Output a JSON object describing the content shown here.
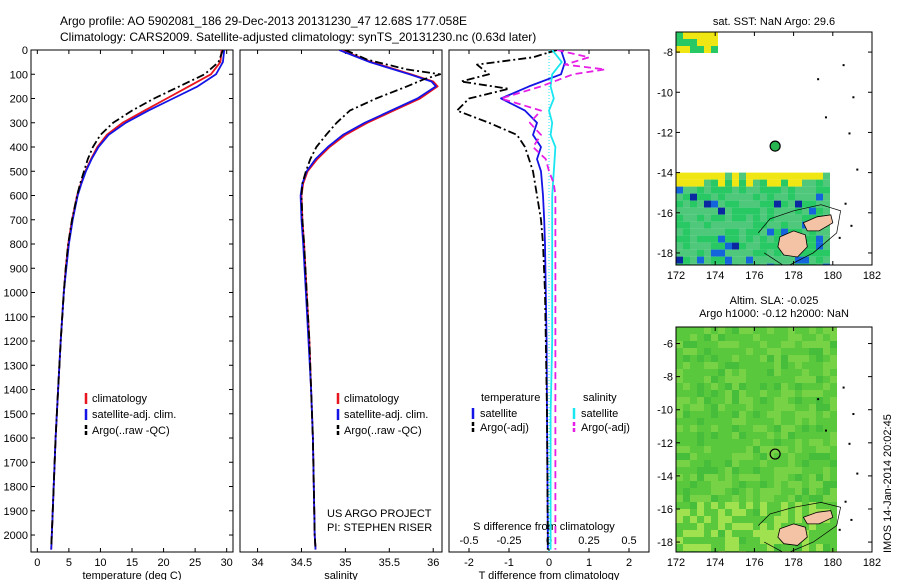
{
  "header": {
    "title_line1": "Argo profile: AO 5902081_186 29-Dec-2013 20131230_47 12.68S 177.058E",
    "title_line2": "Climatology: CARS2009. Satellite-adjusted climatology: synTS_20131230.nc (0.63d later)"
  },
  "footer": {
    "project": "US ARGO PROJECT",
    "pi": "PI: STEPHEN RISER",
    "imos_stamp": "IMOS 14-Jan-2014 20:02:45"
  },
  "chart_data": [
    {
      "type": "line",
      "id": "temperature",
      "xlabel": "temperature (deg C)",
      "ylabel": "",
      "xlim": [
        -1,
        31
      ],
      "ylim": [
        2070,
        0
      ],
      "x_ticks": [
        0,
        5,
        10,
        15,
        20,
        25,
        30
      ],
      "y_ticks": [
        0,
        100,
        200,
        300,
        400,
        500,
        600,
        700,
        800,
        900,
        1000,
        1100,
        1200,
        1300,
        1400,
        1500,
        1600,
        1700,
        1800,
        1900,
        2000
      ],
      "legend": [
        "climatology",
        "satellite-adj. clim.",
        "Argo(..raw -QC)"
      ],
      "series": [
        {
          "name": "climatology",
          "color": "#e8141e",
          "dash": "solid",
          "depth": [
            0,
            50,
            100,
            150,
            200,
            250,
            300,
            350,
            400,
            450,
            500,
            550,
            600,
            700,
            800,
            900,
            1000,
            1200,
            1400,
            1600,
            1800,
            2000,
            2060
          ],
          "values": [
            29.2,
            29.0,
            27.5,
            24.0,
            20.5,
            17.0,
            13.5,
            11.0,
            9.5,
            8.5,
            7.6,
            6.9,
            6.3,
            5.5,
            4.9,
            4.5,
            4.2,
            3.7,
            3.3,
            2.9,
            2.6,
            2.3,
            2.2
          ]
        },
        {
          "name": "satellite-adj. clim.",
          "color": "#1414e6",
          "dash": "solid",
          "depth": [
            0,
            50,
            100,
            150,
            200,
            250,
            300,
            350,
            400,
            450,
            500,
            550,
            600,
            700,
            800,
            900,
            1000,
            1200,
            1400,
            1600,
            1800,
            2000,
            2060
          ],
          "values": [
            29.6,
            29.4,
            28.3,
            25.4,
            21.5,
            17.6,
            14.0,
            11.3,
            9.7,
            8.6,
            7.7,
            7.0,
            6.4,
            5.6,
            5.0,
            4.6,
            4.2,
            3.7,
            3.3,
            2.9,
            2.6,
            2.3,
            2.2
          ]
        },
        {
          "name": "Argo(..raw -QC)",
          "color": "#000000",
          "dash": "dashdot",
          "depth": [
            0,
            50,
            100,
            150,
            200,
            250,
            300,
            350,
            400,
            450,
            500,
            550,
            600,
            700,
            800,
            900,
            1000,
            1200,
            1400,
            1600,
            1800,
            2000,
            2050
          ],
          "values": [
            29.4,
            28.7,
            26.5,
            22.5,
            18.5,
            15.0,
            12.0,
            10.0,
            8.8,
            8.0,
            7.4,
            6.8,
            6.3,
            5.5,
            4.9,
            4.5,
            4.2,
            3.7,
            3.3,
            2.9,
            2.6,
            2.3,
            2.2
          ]
        }
      ]
    },
    {
      "type": "line",
      "id": "salinity",
      "xlabel": "salinity",
      "ylabel": "",
      "xlim": [
        33.8,
        36.1
      ],
      "ylim": [
        2070,
        0
      ],
      "x_ticks": [
        34,
        34.5,
        35,
        35.5,
        36
      ],
      "x_tick_labels": [
        "34",
        "34.5",
        "35",
        "35.5",
        "36"
      ],
      "legend": [
        "climatology",
        "satellite-adj. clim.",
        "Argo(..raw -QC)"
      ],
      "series": [
        {
          "name": "climatology",
          "color": "#e8141e",
          "dash": "solid",
          "depth": [
            0,
            50,
            100,
            130,
            150,
            200,
            250,
            300,
            350,
            400,
            450,
            500,
            550,
            600,
            700,
            800,
            1000,
            1200,
            1400,
            1600,
            1800,
            2000,
            2060
          ],
          "values": [
            34.95,
            35.3,
            35.75,
            36.0,
            36.05,
            35.85,
            35.55,
            35.25,
            35.0,
            34.82,
            34.68,
            34.57,
            34.52,
            34.5,
            34.51,
            34.53,
            34.56,
            34.59,
            34.61,
            34.63,
            34.64,
            34.65,
            34.66
          ]
        },
        {
          "name": "satellite-adj. clim.",
          "color": "#1414e6",
          "dash": "solid",
          "depth": [
            0,
            50,
            100,
            130,
            150,
            200,
            250,
            300,
            350,
            400,
            450,
            500,
            550,
            600,
            700,
            800,
            1000,
            1200,
            1400,
            1600,
            1800,
            2000,
            2060
          ],
          "values": [
            34.93,
            35.28,
            35.73,
            35.98,
            36.03,
            35.82,
            35.52,
            35.22,
            34.97,
            34.8,
            34.66,
            34.56,
            34.51,
            34.49,
            34.5,
            34.52,
            34.55,
            34.58,
            34.61,
            34.63,
            34.64,
            34.65,
            34.66
          ]
        },
        {
          "name": "Argo(..raw -QC)",
          "color": "#000000",
          "dash": "dashdot",
          "depth": [
            0,
            40,
            80,
            100,
            120,
            150,
            200,
            250,
            300,
            350,
            400,
            450,
            500,
            550,
            600,
            700,
            800,
            1000,
            1200,
            1400,
            1600,
            1800,
            2000,
            2050
          ],
          "values": [
            35.0,
            35.25,
            35.7,
            36.08,
            35.9,
            35.7,
            35.35,
            35.05,
            34.9,
            34.78,
            34.67,
            34.6,
            34.55,
            34.51,
            34.5,
            34.51,
            34.53,
            34.56,
            34.59,
            34.61,
            34.63,
            34.64,
            34.65,
            34.66
          ]
        }
      ]
    },
    {
      "type": "line",
      "id": "difference",
      "xlabel": "T difference from climatology",
      "xlabel_top": "S difference from climatology",
      "ylabel": "",
      "xlim": [
        -2.5,
        2.5
      ],
      "ylim": [
        2070,
        0
      ],
      "x_ticks": [
        -2,
        -1,
        0,
        1,
        2
      ],
      "s_ticks": [
        -0.5,
        -0.25,
        0,
        0.25,
        0.5
      ],
      "s_tick_labels": [
        "-0.5",
        "-0.25",
        "0",
        "0.25",
        "0.5"
      ],
      "legend_temperature_title": "temperature",
      "legend_salinity_title": "salinity",
      "legend": [
        "satellite",
        "Argo(-adj)",
        "satellite",
        "Argo(-adj)"
      ],
      "series": [
        {
          "name": "satellite",
          "group": "temperature",
          "color": "#1414e6",
          "dash": "solid",
          "depth": [
            0,
            50,
            100,
            150,
            200,
            250,
            300,
            350,
            400,
            450,
            500,
            600,
            700,
            800,
            1000,
            1200,
            1500,
            2000,
            2060
          ],
          "values": [
            0.3,
            0.4,
            0.3,
            -0.5,
            -1.2,
            -0.6,
            -0.3,
            -0.4,
            -0.2,
            -0.3,
            -0.2,
            -0.15,
            -0.12,
            -0.1,
            -0.08,
            -0.06,
            -0.05,
            -0.03,
            -0.03
          ]
        },
        {
          "name": "Argo(-adj)",
          "group": "temperature",
          "color": "#000000",
          "dash": "dashdot",
          "depth": [
            0,
            30,
            60,
            100,
            130,
            160,
            200,
            250,
            300,
            350,
            400,
            450,
            500,
            600,
            700,
            800,
            1000,
            1200,
            1500,
            2000,
            2060
          ],
          "values": [
            0.2,
            -0.4,
            -1.8,
            -1.5,
            -2.2,
            -1.0,
            -2.0,
            -2.3,
            -1.5,
            -0.8,
            -0.6,
            -0.5,
            -0.4,
            -0.3,
            -0.2,
            -0.15,
            -0.1,
            -0.08,
            -0.05,
            -0.03,
            -0.03
          ]
        },
        {
          "name": "satellite",
          "group": "salinity",
          "color": "#18e6f0",
          "dash": "solid",
          "depth": [
            0,
            50,
            100,
            150,
            200,
            250,
            300,
            350,
            400,
            500,
            600,
            800,
            1000,
            1200,
            1500,
            2000,
            2060
          ],
          "values": [
            0.02,
            0.08,
            0.02,
            0.01,
            0.03,
            0.0,
            0.02,
            0.01,
            0.04,
            0.03,
            0.02,
            0.02,
            0.02,
            0.02,
            0.01,
            0.01,
            0.01
          ]
        },
        {
          "name": "Argo(-adj)",
          "group": "salinity",
          "color": "#e61ee6",
          "dash": "dashed",
          "depth": [
            0,
            30,
            60,
            80,
            100,
            150,
            200,
            250,
            300,
            350,
            400,
            450,
            500,
            550,
            600,
            800,
            1000,
            1200,
            1500,
            2000,
            2060
          ],
          "values": [
            0.05,
            0.25,
            0.1,
            0.35,
            0.15,
            -0.05,
            -0.3,
            -0.05,
            -0.12,
            -0.05,
            -0.1,
            -0.02,
            0.0,
            0.03,
            0.04,
            0.04,
            0.04,
            0.04,
            0.04,
            0.04,
            0.04
          ]
        }
      ]
    },
    {
      "type": "heatmap",
      "id": "sst_map",
      "title": "sat. SST: NaN Argo: 29.6",
      "xlim": [
        172,
        182
      ],
      "ylim": [
        -18.6,
        -7.0
      ],
      "x_ticks": [
        172,
        174,
        176,
        178,
        180,
        182
      ],
      "y_ticks": [
        -8,
        -10,
        -12,
        -14,
        -16,
        -18
      ],
      "argo_position": {
        "lon": 177.058,
        "lat": -12.68
      },
      "colors": [
        "#f0e614",
        "#28c864",
        "#50c87c",
        "#1464dc",
        "#0a28a0"
      ]
    },
    {
      "type": "heatmap",
      "id": "sla_map",
      "title": "Altim. SLA: -0.025",
      "subtitle": "Argo h1000: -0.12 h2000: NaN",
      "xlim": [
        172,
        182
      ],
      "ylim": [
        -18.6,
        -5.0
      ],
      "x_ticks": [
        172,
        174,
        176,
        178,
        180,
        182
      ],
      "y_ticks": [
        -6,
        -8,
        -10,
        -12,
        -14,
        -16,
        -18
      ],
      "argo_position": {
        "lon": 177.058,
        "lat": -12.68
      },
      "colors": [
        "#5ac83c",
        "#78d246",
        "#a0e150",
        "#46be3c"
      ]
    }
  ]
}
